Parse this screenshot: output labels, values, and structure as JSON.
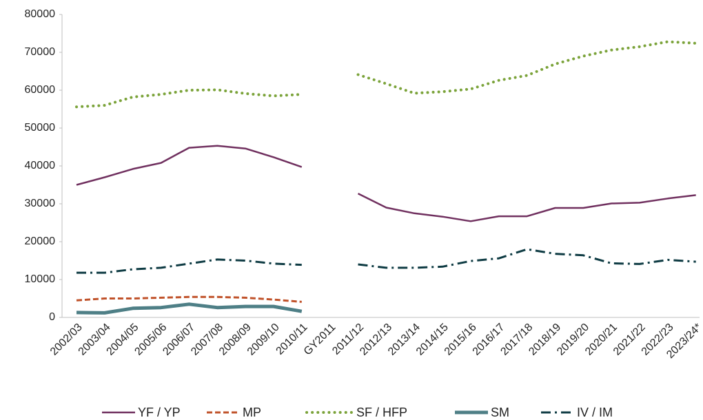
{
  "chart_data": {
    "type": "line",
    "categories": [
      "2002/03",
      "2003/04",
      "2004/05",
      "2005/06",
      "2006/07",
      "2007/08",
      "2008/09",
      "2009/10",
      "2010/11",
      "GY2011",
      "2011/12",
      "2012/13",
      "2013/14",
      "2014/15",
      "2015/16",
      "2016/17",
      "2017/18",
      "2018/19",
      "2019/20",
      "2020/21",
      "2021/22",
      "2022/23",
      "2023/24*"
    ],
    "series": [
      {
        "name": "YF / YP",
        "color": "#70305f",
        "values": [
          35000,
          37000,
          39200,
          40800,
          44800,
          45300,
          44600,
          42300,
          39700,
          null,
          32700,
          29000,
          27500,
          26600,
          25400,
          26700,
          26700,
          28900,
          28900,
          30100,
          30300,
          31400,
          32300
        ]
      },
      {
        "name": "MP",
        "color": "#c0522a",
        "values": [
          4500,
          5000,
          5000,
          5200,
          5400,
          5400,
          5200,
          4700,
          4100,
          null,
          null,
          null,
          null,
          null,
          null,
          null,
          null,
          null,
          null,
          null,
          null,
          null,
          null
        ]
      },
      {
        "name": "SF / HFP",
        "color": "#7ba33a",
        "values": [
          55600,
          56000,
          58200,
          58900,
          60000,
          60100,
          59100,
          58500,
          58900,
          null,
          64100,
          61700,
          59200,
          59600,
          60300,
          62600,
          63900,
          66900,
          69000,
          70600,
          71500,
          72800,
          72400
        ]
      },
      {
        "name": "SM",
        "color": "#4e7f86",
        "values": [
          1300,
          1200,
          2400,
          2600,
          3500,
          2600,
          2900,
          2900,
          1600,
          null,
          null,
          null,
          null,
          null,
          null,
          null,
          null,
          null,
          null,
          null,
          null,
          null,
          null
        ]
      },
      {
        "name": "IV / IM",
        "color": "#0e3b43",
        "values": [
          11800,
          11800,
          12700,
          13100,
          14200,
          15300,
          15000,
          14200,
          13900,
          null,
          14000,
          13100,
          13100,
          13400,
          14900,
          15600,
          18000,
          16800,
          16400,
          14300,
          14100,
          15200,
          14700
        ]
      }
    ],
    "ylim": [
      0,
      80000
    ],
    "yticks": [
      0,
      10000,
      20000,
      30000,
      40000,
      50000,
      60000,
      70000,
      80000
    ],
    "grid": false,
    "legend": "bottom"
  }
}
